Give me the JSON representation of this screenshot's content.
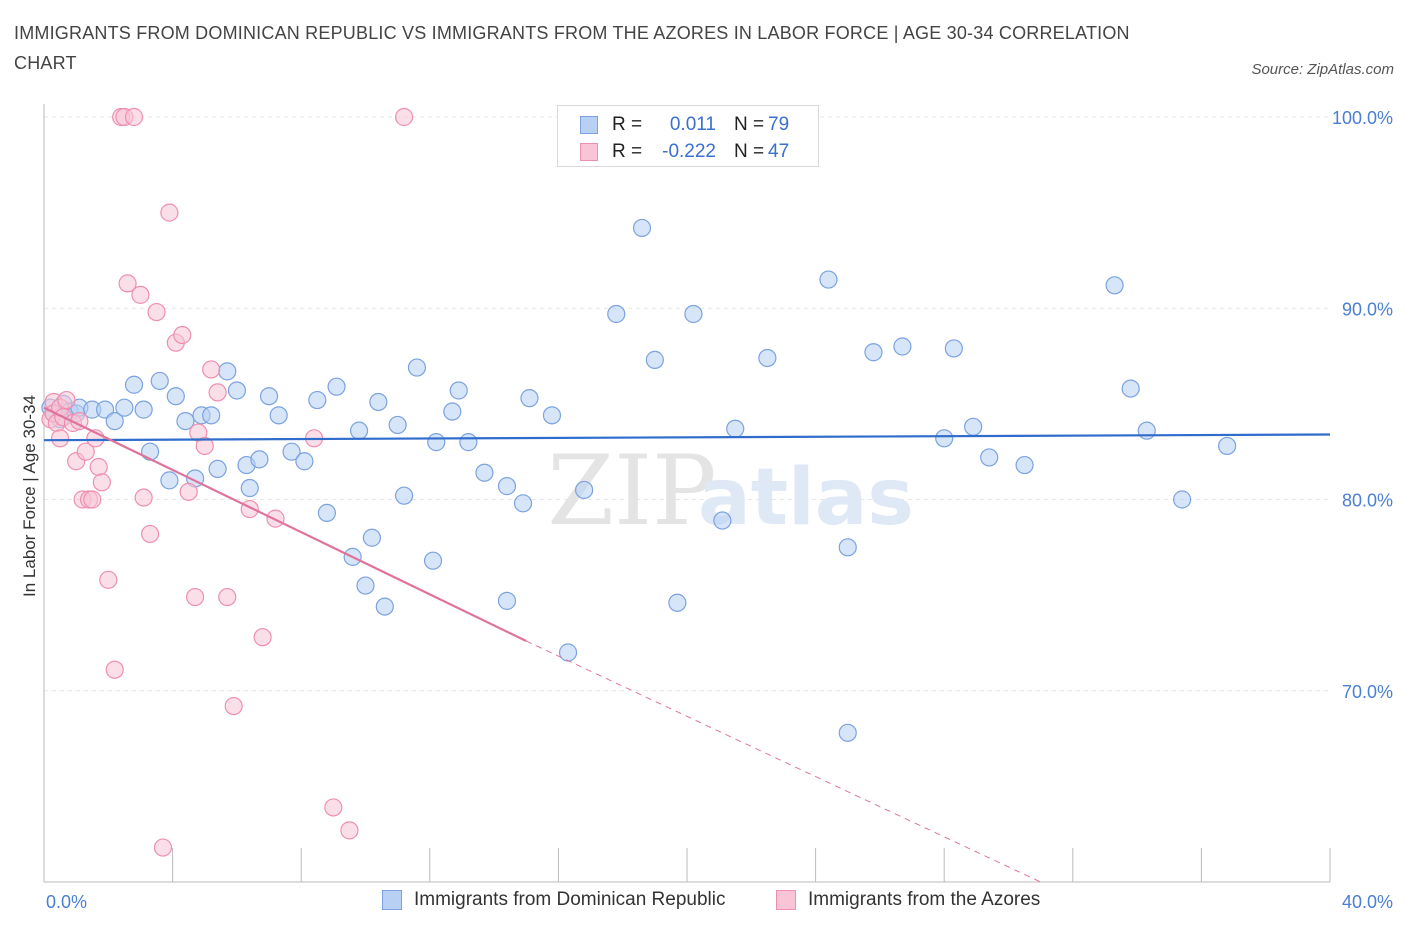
{
  "title": "IMMIGRANTS FROM DOMINICAN REPUBLIC VS IMMIGRANTS FROM THE AZORES IN LABOR FORCE | AGE 30-34 CORRELATION CHART",
  "source": "Source: ZipAtlas.com",
  "watermark": {
    "zip": "ZIP",
    "atlas": "atlas"
  },
  "legend": {
    "rows": [
      {
        "r_label": "R =",
        "r_value": "0.011",
        "n_label": "N =",
        "n_value": "79"
      },
      {
        "r_label": "R =",
        "r_value": "-0.222",
        "n_label": "N =",
        "n_value": "47"
      }
    ]
  },
  "colors": {
    "blue_fill": "#b7d0f3",
    "blue_stroke": "#7aa3e0",
    "blue_line": "#2f6ccc",
    "pink_fill": "#f8c4d6",
    "pink_stroke": "#ef8fb0",
    "pink_line": "#e0739c",
    "grid": "#e6e6e6",
    "tick_label": "#4a7fd4"
  },
  "chart_data": {
    "type": "scatter",
    "title": "IMMIGRANTS FROM DOMINICAN REPUBLIC VS IMMIGRANTS FROM THE AZORES IN LABOR FORCE | AGE 30-34 CORRELATION CHART",
    "xlabel": "",
    "ylabel": "In Labor Force | Age 30-34",
    "xlim": [
      0,
      40
    ],
    "ylim": [
      60,
      100
    ],
    "x_tick_labels": [
      "0.0%",
      "40.0%"
    ],
    "y_ticks": [
      70,
      80,
      90,
      100
    ],
    "y_tick_labels": [
      "70.0%",
      "80.0%",
      "90.0%",
      "100.0%"
    ],
    "grid": true,
    "legend_position": "bottom",
    "series": [
      {
        "name": "Immigrants from Dominican Republic",
        "r": 0.011,
        "n": 79,
        "trend": {
          "x": [
            0,
            40
          ],
          "y": [
            83.1,
            83.4
          ]
        },
        "points": [
          [
            0.2,
            84.8
          ],
          [
            0.3,
            84.5
          ],
          [
            0.5,
            84.2
          ],
          [
            0.6,
            85.0
          ],
          [
            0.8,
            84.6
          ],
          [
            1.0,
            84.5
          ],
          [
            1.1,
            84.8
          ],
          [
            1.5,
            84.7
          ],
          [
            1.9,
            84.7
          ],
          [
            2.2,
            84.1
          ],
          [
            2.5,
            84.8
          ],
          [
            2.8,
            86.0
          ],
          [
            3.1,
            84.7
          ],
          [
            3.3,
            82.5
          ],
          [
            3.6,
            86.2
          ],
          [
            3.9,
            81.0
          ],
          [
            4.1,
            85.4
          ],
          [
            4.4,
            84.1
          ],
          [
            4.7,
            81.1
          ],
          [
            4.9,
            84.4
          ],
          [
            5.2,
            84.4
          ],
          [
            5.4,
            81.6
          ],
          [
            5.7,
            86.7
          ],
          [
            6.0,
            85.7
          ],
          [
            6.3,
            81.8
          ],
          [
            6.4,
            80.6
          ],
          [
            6.7,
            82.1
          ],
          [
            7.0,
            85.4
          ],
          [
            7.3,
            84.4
          ],
          [
            7.7,
            82.5
          ],
          [
            8.1,
            82.0
          ],
          [
            8.5,
            85.2
          ],
          [
            8.8,
            79.3
          ],
          [
            9.1,
            85.9
          ],
          [
            9.6,
            77.0
          ],
          [
            9.8,
            83.6
          ],
          [
            10.0,
            75.5
          ],
          [
            10.2,
            78.0
          ],
          [
            10.4,
            85.1
          ],
          [
            10.6,
            74.4
          ],
          [
            11.0,
            83.9
          ],
          [
            11.2,
            80.2
          ],
          [
            11.6,
            86.9
          ],
          [
            12.1,
            76.8
          ],
          [
            12.2,
            83.0
          ],
          [
            12.7,
            84.6
          ],
          [
            12.9,
            85.7
          ],
          [
            13.2,
            83.0
          ],
          [
            13.7,
            81.4
          ],
          [
            14.4,
            80.7
          ],
          [
            14.4,
            74.7
          ],
          [
            14.9,
            79.8
          ],
          [
            15.1,
            85.3
          ],
          [
            15.8,
            84.4
          ],
          [
            16.3,
            72.0
          ],
          [
            16.8,
            80.5
          ],
          [
            17.8,
            89.7
          ],
          [
            18.6,
            94.2
          ],
          [
            19.0,
            87.3
          ],
          [
            19.7,
            74.6
          ],
          [
            20.2,
            89.7
          ],
          [
            21.1,
            78.9
          ],
          [
            21.5,
            83.7
          ],
          [
            22.5,
            87.4
          ],
          [
            24.4,
            91.5
          ],
          [
            25.0,
            77.5
          ],
          [
            25.0,
            67.8
          ],
          [
            25.8,
            87.7
          ],
          [
            26.7,
            88.0
          ],
          [
            28.0,
            83.2
          ],
          [
            28.3,
            87.9
          ],
          [
            28.9,
            83.8
          ],
          [
            29.4,
            82.2
          ],
          [
            30.5,
            81.8
          ],
          [
            33.3,
            91.2
          ],
          [
            33.8,
            85.8
          ],
          [
            34.3,
            83.6
          ],
          [
            35.4,
            80.0
          ],
          [
            36.8,
            82.8
          ]
        ]
      },
      {
        "name": "Immigrants from the Azores",
        "r": -0.222,
        "n": 47,
        "trend": {
          "x": [
            0,
            15
          ],
          "y": [
            84.8,
            72.6
          ]
        },
        "trend_dashed": {
          "x": [
            15,
            31
          ],
          "y": [
            72.6,
            60.0
          ]
        },
        "points": [
          [
            0.2,
            84.2
          ],
          [
            0.3,
            85.1
          ],
          [
            0.3,
            84.5
          ],
          [
            0.4,
            84.0
          ],
          [
            0.5,
            84.8
          ],
          [
            0.5,
            83.2
          ],
          [
            0.6,
            84.3
          ],
          [
            0.7,
            85.2
          ],
          [
            0.9,
            84.0
          ],
          [
            1.0,
            82.0
          ],
          [
            1.1,
            84.1
          ],
          [
            1.2,
            80.0
          ],
          [
            1.3,
            82.5
          ],
          [
            1.4,
            80.0
          ],
          [
            1.5,
            80.0
          ],
          [
            1.6,
            83.2
          ],
          [
            1.7,
            81.7
          ],
          [
            1.8,
            80.9
          ],
          [
            2.0,
            75.8
          ],
          [
            2.2,
            71.1
          ],
          [
            2.4,
            100.0
          ],
          [
            2.5,
            100.0
          ],
          [
            2.6,
            91.3
          ],
          [
            2.8,
            100.0
          ],
          [
            3.0,
            90.7
          ],
          [
            3.1,
            80.1
          ],
          [
            3.3,
            78.2
          ],
          [
            3.5,
            89.8
          ],
          [
            3.7,
            61.8
          ],
          [
            3.9,
            95.0
          ],
          [
            4.1,
            88.2
          ],
          [
            4.3,
            88.6
          ],
          [
            4.5,
            80.4
          ],
          [
            4.7,
            74.9
          ],
          [
            4.8,
            83.5
          ],
          [
            5.0,
            82.8
          ],
          [
            5.2,
            86.8
          ],
          [
            5.4,
            85.6
          ],
          [
            5.7,
            74.9
          ],
          [
            5.9,
            69.2
          ],
          [
            6.4,
            79.5
          ],
          [
            6.8,
            72.8
          ],
          [
            7.2,
            79.0
          ],
          [
            8.4,
            83.2
          ],
          [
            9.0,
            63.9
          ],
          [
            9.5,
            62.7
          ],
          [
            11.2,
            100.0
          ]
        ]
      }
    ]
  }
}
